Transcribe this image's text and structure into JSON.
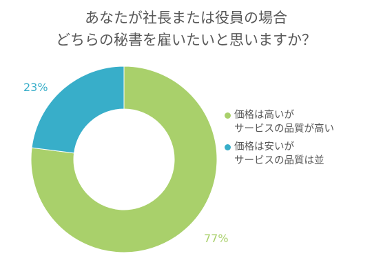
{
  "chart_data": {
    "type": "pie",
    "title": [
      "あなたが社長または役員の場合",
      "どちらの秘書を雇いたいと思いますか？"
    ],
    "series": [
      {
        "name": [
          "価格は高いが",
          "サービスの品質が高い"
        ],
        "value": 77,
        "label": "77%",
        "color": "#a9d06b",
        "label_color": "#a9d06b"
      },
      {
        "name": [
          "価格は安いが",
          "サービスの品質は並"
        ],
        "value": 23,
        "label": "23%",
        "color": "#38aec9",
        "label_color": "#38aec9"
      }
    ],
    "legend": "right",
    "hole": "donut"
  }
}
